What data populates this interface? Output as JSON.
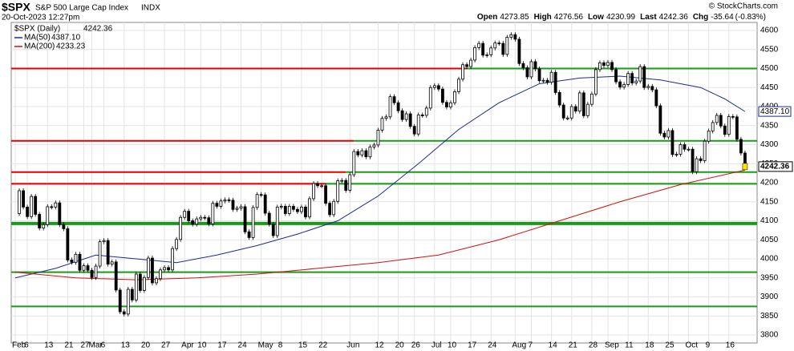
{
  "chart_data": {
    "type": "candlestick",
    "symbol": "$SPX",
    "title": "S&P 500 Large Cap Index",
    "exchange": "INDX",
    "timestamp": "20-Oct-2023 12:27pm",
    "watermark": "© StockCharts.com",
    "quote": [
      {
        "label": "Open",
        "value": 4273.85
      },
      {
        "label": "High",
        "value": 4276.56
      },
      {
        "label": "Low",
        "value": 4230.99
      },
      {
        "label": "Last",
        "value": 4242.36
      },
      {
        "label": "Chg",
        "value": -35.64
      }
    ],
    "change_pct": "(-0.83%)",
    "price_legend": "$SPX (Daily)",
    "last_price": 4242.36,
    "series": [
      {
        "name": "$SPX",
        "color": "#000000",
        "close": [
          4119,
          4179,
          4136,
          4111,
          4164,
          4117,
          4081,
          4090,
          4137,
          4136,
          4147,
          4090,
          4079,
          3997,
          3991,
          4012,
          3970,
          3982,
          3970,
          3951,
          3981,
          4045,
          4048,
          3986,
          3992,
          3918,
          3861,
          3855,
          3920,
          3892,
          3960,
          3917,
          3951,
          4002,
          3937,
          3948,
          3971,
          3977,
          3971,
          4027,
          4051,
          4109,
          4125,
          4100,
          4091,
          4105,
          4109,
          4108,
          4092,
          4146,
          4138,
          4152,
          4155,
          4154,
          4130,
          4133,
          4137,
          4071,
          4056,
          4135,
          4169,
          4168,
          4120,
          4091,
          4061,
          4136,
          4138,
          4119,
          4138,
          4130,
          4124,
          4136,
          4110,
          4158,
          4198,
          4192,
          4192,
          4146,
          4116,
          4151,
          4205,
          4206,
          4180,
          4221,
          4282,
          4273,
          4284,
          4268,
          4294,
          4299,
          4338,
          4369,
          4373,
          4426,
          4410,
          4389,
          4366,
          4381,
          4348,
          4328,
          4378,
          4377,
          4396,
          4450,
          4455,
          4446,
          4411,
          4399,
          4410,
          4439,
          4472,
          4510,
          4505,
          4522,
          4555,
          4566,
          4535,
          4536,
          4554,
          4567,
          4566,
          4537,
          4582,
          4589,
          4577,
          4513,
          4502,
          4478,
          4518,
          4499,
          4468,
          4469,
          4464,
          4490,
          4437,
          4404,
          4370,
          4370,
          4400,
          4388,
          4436,
          4376,
          4406,
          4433,
          4497,
          4515,
          4508,
          4516,
          4497,
          4465,
          4451,
          4458,
          4487,
          4462,
          4467,
          4505,
          4450,
          4453,
          4444,
          4402,
          4330,
          4320,
          4337,
          4274,
          4275,
          4300,
          4288,
          4288,
          4229,
          4263,
          4258,
          4309,
          4336,
          4358,
          4377,
          4349,
          4327,
          4374,
          4373,
          4314,
          4278,
          4242.36
        ]
      },
      {
        "name": "MA(50)",
        "color": "#1f2a8c",
        "last": {
          "value": 4387.1,
          "label": "4387.10"
        },
        "x": [
          0,
          10,
          20,
          30,
          40,
          50,
          60,
          70,
          80,
          90,
          100,
          110,
          120,
          130,
          140,
          150,
          160,
          170,
          176,
          181
        ],
        "values": [
          3950,
          3975,
          4010,
          4000,
          3990,
          4010,
          4035,
          4065,
          4100,
          4165,
          4250,
          4340,
          4410,
          4460,
          4475,
          4480,
          4470,
          4450,
          4420,
          4387.1
        ]
      },
      {
        "name": "MA(200)",
        "color": "#d01010",
        "last": {
          "value": 4233.23,
          "label": "4233.23"
        },
        "x": [
          0,
          15,
          30,
          45,
          60,
          75,
          90,
          105,
          120,
          135,
          150,
          165,
          181
        ],
        "values": [
          3965,
          3950,
          3945,
          3950,
          3960,
          3975,
          3990,
          4010,
          4050,
          4100,
          4150,
          4195,
          4233.23
        ]
      }
    ],
    "levels": [
      {
        "value": 4500,
        "from": -1,
        "to": 112,
        "color": "#e00000"
      },
      {
        "value": 4500,
        "from": 112,
        "to": 184,
        "color": "#1a9a1a"
      },
      {
        "value": 4310,
        "from": -1,
        "to": 84,
        "color": "#e00000"
      },
      {
        "value": 4310,
        "from": 84,
        "to": 184,
        "color": "#1a9a1a"
      },
      {
        "value": 4228,
        "from": -1,
        "to": 82,
        "color": "#e00000"
      },
      {
        "value": 4228,
        "from": 82,
        "to": 184,
        "color": "#1a9a1a"
      },
      {
        "value": 4197,
        "from": -1,
        "to": 77,
        "color": "#e00000"
      },
      {
        "value": 4197,
        "from": 77,
        "to": 184,
        "color": "#1a9a1a"
      },
      {
        "value": 4093,
        "from": -1,
        "to": 184,
        "color": "#1a9a1a"
      },
      {
        "value": 3965,
        "from": -1,
        "to": 184,
        "color": "#1a9a1a"
      },
      {
        "value": 3875,
        "from": -1,
        "to": 184,
        "color": "#1a9a1a"
      }
    ],
    "xlim": [
      -1,
      184
    ],
    "xticks": [
      {
        "value": 0,
        "label": "Feb"
      },
      {
        "value": 3,
        "label": "6"
      },
      {
        "value": 8,
        "label": "13"
      },
      {
        "value": 13,
        "label": "21"
      },
      {
        "value": 17,
        "label": "27"
      },
      {
        "value": 19,
        "label": "Mar"
      },
      {
        "value": 22,
        "label": "6"
      },
      {
        "value": 27,
        "label": "13"
      },
      {
        "value": 32,
        "label": "20"
      },
      {
        "value": 37,
        "label": "27"
      },
      {
        "value": 42,
        "label": "Apr"
      },
      {
        "value": 46,
        "label": "10"
      },
      {
        "value": 51,
        "label": "17"
      },
      {
        "value": 56,
        "label": "24"
      },
      {
        "value": 61,
        "label": "May"
      },
      {
        "value": 66,
        "label": "8"
      },
      {
        "value": 71,
        "label": "15"
      },
      {
        "value": 76,
        "label": "22"
      },
      {
        "value": 83,
        "label": "Jun"
      },
      {
        "value": 90,
        "label": "12"
      },
      {
        "value": 95,
        "label": "20"
      },
      {
        "value": 99,
        "label": "26"
      },
      {
        "value": 104,
        "label": "Jul"
      },
      {
        "value": 108,
        "label": "10"
      },
      {
        "value": 113,
        "label": "17"
      },
      {
        "value": 118,
        "label": "24"
      },
      {
        "value": 124,
        "label": "Aug"
      },
      {
        "value": 128,
        "label": "7"
      },
      {
        "value": 133,
        "label": "14"
      },
      {
        "value": 138,
        "label": "21"
      },
      {
        "value": 143,
        "label": "28"
      },
      {
        "value": 147,
        "label": "Sep"
      },
      {
        "value": 152,
        "label": "11"
      },
      {
        "value": 157,
        "label": "18"
      },
      {
        "value": 162,
        "label": "25"
      },
      {
        "value": 167,
        "label": "Oct"
      },
      {
        "value": 172,
        "label": "9"
      },
      {
        "value": 177,
        "label": "16"
      }
    ],
    "ylim": [
      3779,
      4621
    ],
    "yticks": [
      3800,
      3850,
      3900,
      3950,
      4000,
      4050,
      4100,
      4150,
      4200,
      4250,
      4300,
      4350,
      4400,
      4450,
      4500,
      4550,
      4600
    ],
    "grid": true
  }
}
